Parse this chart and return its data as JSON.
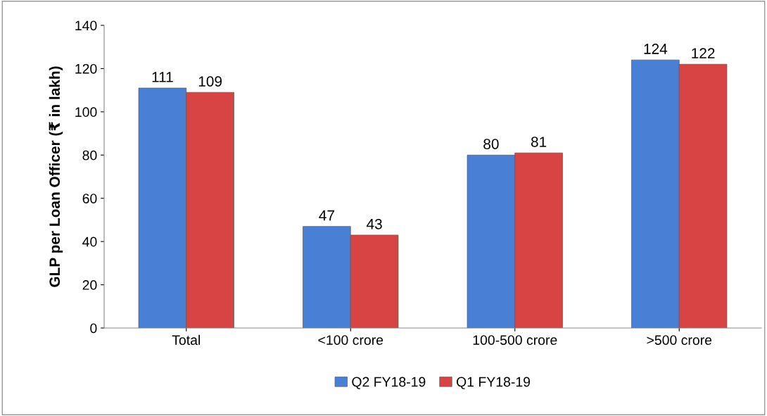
{
  "chart_data": {
    "type": "bar",
    "ylabel": "GLP per Loan Officer (₹ in lakh)",
    "categories": [
      "Total",
      "<100 crore",
      "100-500 crore",
      ">500 crore"
    ],
    "series": [
      {
        "name": "Q2 FY18-19",
        "color": "#4a7fd6",
        "values": [
          111,
          47,
          80,
          124
        ]
      },
      {
        "name": "Q1 FY18-19",
        "color": "#d84444",
        "values": [
          109,
          43,
          81,
          122
        ]
      }
    ],
    "ylim": [
      0,
      140
    ],
    "yticks": [
      0,
      20,
      40,
      60,
      80,
      100,
      120,
      140
    ],
    "data_labels": true,
    "grid": false,
    "legend": "bottom"
  }
}
